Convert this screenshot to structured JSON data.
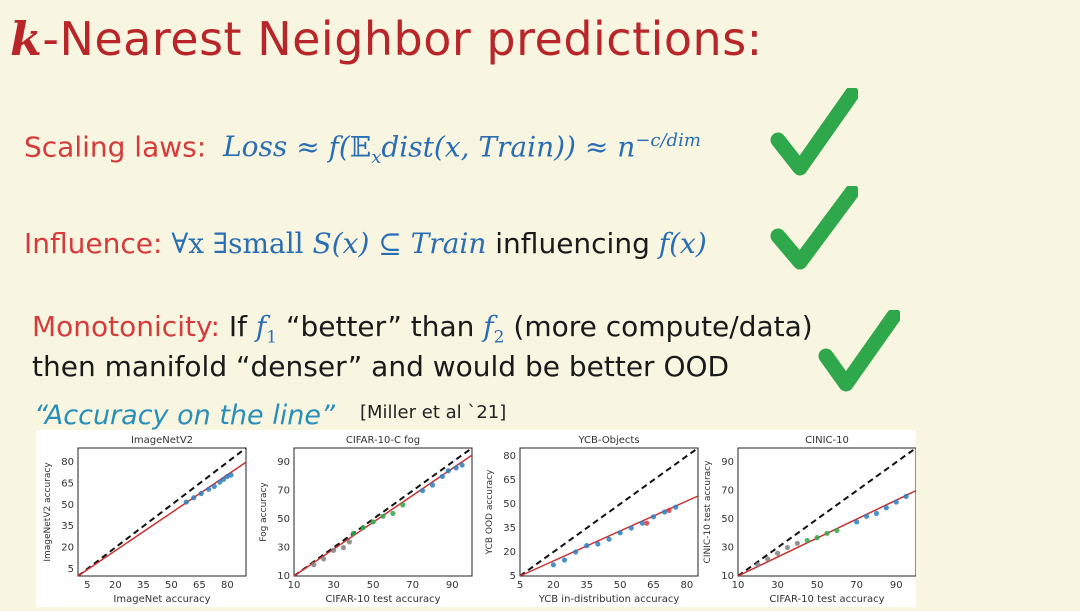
{
  "title": {
    "k": "k",
    "rest": "-Nearest Neighbor predictions:"
  },
  "scaling": {
    "label": "Scaling laws:",
    "loss": "Loss",
    "approx1": "≈",
    "f_open": "f(",
    "expect": "𝔼",
    "sub_x": "x",
    "dist": "dist(x, Train)",
    "close": ")",
    "approx2": "≈",
    "n": "n",
    "exp": "−c/dim"
  },
  "influence": {
    "label": "Influence:",
    "forall": "∀x ∃small",
    "sx": "S(x) ⊆ Train",
    "influencing": "influencing",
    "fx": "f(x)"
  },
  "monotonicity": {
    "label": "Monotonicity:",
    "if": "If",
    "f1": "f",
    "sub1": "1",
    "better": "“better” than",
    "f2": "f",
    "sub2": "2",
    "paren": "(more compute/data)",
    "line2": "then manifold “denser” and would be better OOD"
  },
  "quote": "“Accuracy on the line”",
  "citation": "[Miller et al `21]",
  "colors": {
    "red": "#d63b3b",
    "blue": "#2a6db3",
    "check": "#2ea84a",
    "title": "#b8262a"
  },
  "chart_data": [
    {
      "type": "scatter",
      "title": "ImageNetV2",
      "xlabel": "ImageNet accuracy",
      "ylabel": "ImageNetV2 accuracy",
      "x_ticks": [
        "5",
        "20",
        "35",
        "50",
        "65",
        "80"
      ],
      "y_ticks": [
        "80",
        "65",
        "50",
        "35",
        "20",
        "5"
      ],
      "xlim": [
        0,
        90
      ],
      "ylim": [
        0,
        90
      ],
      "series": [
        {
          "color": "#2a7fc0",
          "points": [
            [
              58,
              52
            ],
            [
              62,
              55
            ],
            [
              66,
              58
            ],
            [
              70,
              61
            ],
            [
              73,
              63
            ],
            [
              76,
              66
            ],
            [
              78,
              68
            ],
            [
              80,
              70
            ],
            [
              82,
              71
            ]
          ]
        }
      ],
      "fit": [
        [
          0,
          0
        ],
        [
          90,
          80
        ]
      ],
      "diagonal": true
    },
    {
      "type": "scatter",
      "title": "CIFAR-10-C fog",
      "xlabel": "CIFAR-10 test accuracy",
      "ylabel": "Fog accuracy",
      "x_ticks": [
        "10",
        "30",
        "50",
        "70",
        "90"
      ],
      "y_ticks": [
        "90",
        "70",
        "50",
        "30",
        "10"
      ],
      "xlim": [
        10,
        100
      ],
      "ylim": [
        10,
        100
      ],
      "series": [
        {
          "color": "#808080",
          "points": [
            [
              20,
              18
            ],
            [
              25,
              22
            ],
            [
              30,
              28
            ],
            [
              35,
              30
            ],
            [
              38,
              34
            ]
          ]
        },
        {
          "color": "#2ea84a",
          "points": [
            [
              40,
              40
            ],
            [
              45,
              44
            ],
            [
              50,
              48
            ],
            [
              55,
              52
            ],
            [
              60,
              54
            ],
            [
              65,
              60
            ]
          ]
        },
        {
          "color": "#2a7fc0",
          "points": [
            [
              75,
              70
            ],
            [
              80,
              74
            ],
            [
              85,
              80
            ],
            [
              88,
              84
            ],
            [
              92,
              86
            ],
            [
              95,
              88
            ]
          ]
        }
      ],
      "fit": [
        [
          10,
          10
        ],
        [
          100,
          95
        ]
      ],
      "diagonal": true
    },
    {
      "type": "scatter",
      "title": "YCB-Objects",
      "xlabel": "YCB in-distribution accuracy",
      "ylabel": "YCB OOD accuracy",
      "x_ticks": [
        "5",
        "20",
        "35",
        "50",
        "65",
        "80"
      ],
      "y_ticks": [
        "80",
        "65",
        "50",
        "35",
        "20",
        "5"
      ],
      "xlim": [
        5,
        85
      ],
      "ylim": [
        5,
        85
      ],
      "series": [
        {
          "color": "#2a7fc0",
          "points": [
            [
              20,
              12
            ],
            [
              25,
              15
            ],
            [
              30,
              20
            ],
            [
              35,
              24
            ],
            [
              40,
              25
            ],
            [
              45,
              28
            ],
            [
              50,
              32
            ],
            [
              55,
              35
            ],
            [
              60,
              38
            ],
            [
              65,
              42
            ],
            [
              70,
              45
            ],
            [
              75,
              48
            ]
          ]
        },
        {
          "color": "#d63b3b",
          "points": [
            [
              62,
              38
            ],
            [
              72,
              46
            ]
          ]
        }
      ],
      "fit": [
        [
          5,
          5
        ],
        [
          85,
          55
        ]
      ],
      "diagonal": true
    },
    {
      "type": "scatter",
      "title": "CINIC-10",
      "xlabel": "CIFAR-10 test accuracy",
      "ylabel": "CINIC-10 test accuracy",
      "x_ticks": [
        "10",
        "30",
        "50",
        "70",
        "90"
      ],
      "y_ticks": [
        "90",
        "70",
        "50",
        "30",
        "10"
      ],
      "xlim": [
        10,
        100
      ],
      "ylim": [
        10,
        100
      ],
      "series": [
        {
          "color": "#808080",
          "points": [
            [
              20,
              18
            ],
            [
              25,
              22
            ],
            [
              30,
              26
            ],
            [
              35,
              30
            ],
            [
              40,
              33
            ]
          ]
        },
        {
          "color": "#2ea84a",
          "points": [
            [
              45,
              35
            ],
            [
              50,
              37
            ],
            [
              55,
              40
            ],
            [
              60,
              42
            ]
          ]
        },
        {
          "color": "#2a7fc0",
          "points": [
            [
              70,
              48
            ],
            [
              75,
              52
            ],
            [
              80,
              54
            ],
            [
              85,
              58
            ],
            [
              90,
              62
            ],
            [
              95,
              66
            ]
          ]
        }
      ],
      "fit": [
        [
          10,
          10
        ],
        [
          100,
          70
        ]
      ],
      "diagonal": true
    }
  ]
}
